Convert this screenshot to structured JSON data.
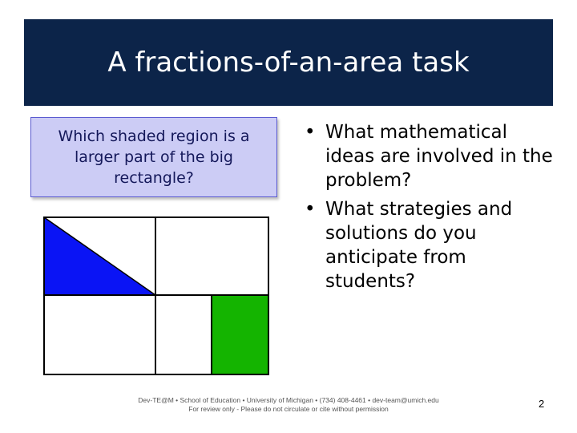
{
  "slide": {
    "title": "A fractions-of-an-area task",
    "question": "Which shaded region is a larger part of the big rectangle?",
    "bullets": [
      {
        "marker": "•",
        "text": "What mathematical ideas are involved in the problem?"
      },
      {
        "marker": "•",
        "text": "What strategies and solutions do you anticipate from students?"
      }
    ],
    "footer_line1": "Dev-TE@M • School of Education • University of Michigan • (734) 408-4461 • dev-team@umich.edu",
    "footer_line2": "For review only - Please do not circulate or cite without permission",
    "page_number": "2"
  },
  "colors": {
    "title_bg": "#0c2449",
    "question_bg": "#ccccf5",
    "blue_region": "#0a14f5",
    "green_region": "#14b400"
  }
}
